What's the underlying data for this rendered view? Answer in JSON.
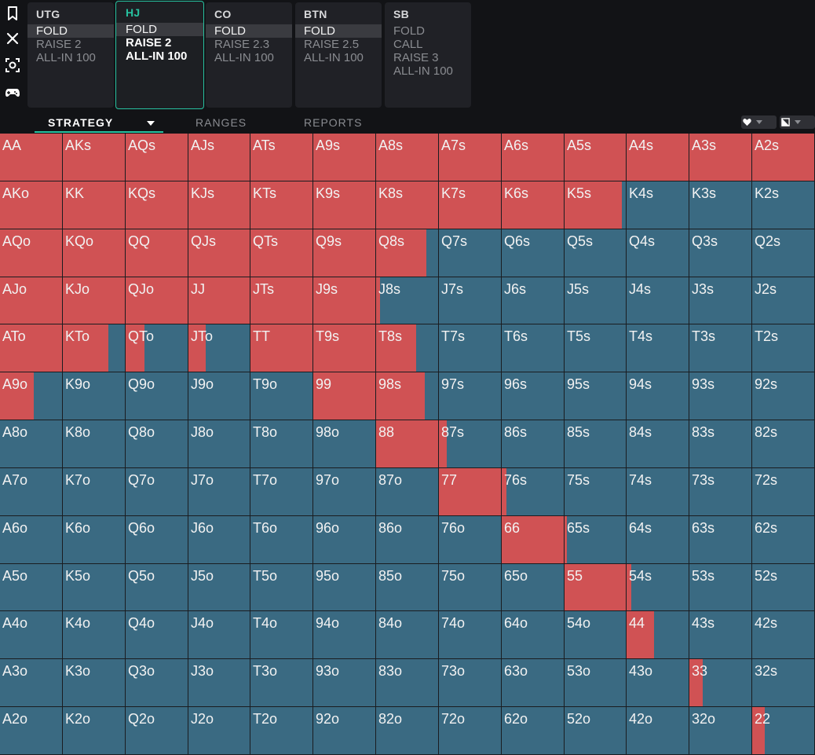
{
  "colors": {
    "raise": "#d05254",
    "fold": "#3a6a82",
    "accent": "#27c2a0"
  },
  "sidebar": {
    "icons": [
      "bookmark-icon",
      "close-icon",
      "screenshot-icon",
      "gamepad-icon"
    ]
  },
  "positions": [
    {
      "name": "UTG",
      "active": false,
      "actions": [
        {
          "label": "FOLD",
          "selected": true
        },
        {
          "label": "RAISE 2",
          "selected": false
        },
        {
          "label": "ALL-IN 100",
          "selected": false
        }
      ]
    },
    {
      "name": "HJ",
      "active": true,
      "actions": [
        {
          "label": "FOLD",
          "selected": true
        },
        {
          "label": "RAISE 2",
          "selected": false,
          "highlight": true
        },
        {
          "label": "ALL-IN 100",
          "selected": false,
          "highlight": true
        }
      ]
    },
    {
      "name": "CO",
      "active": false,
      "actions": [
        {
          "label": "FOLD",
          "selected": true
        },
        {
          "label": "RAISE 2.3",
          "selected": false
        },
        {
          "label": "ALL-IN 100",
          "selected": false
        }
      ]
    },
    {
      "name": "BTN",
      "active": false,
      "actions": [
        {
          "label": "FOLD",
          "selected": true
        },
        {
          "label": "RAISE 2.5",
          "selected": false
        },
        {
          "label": "ALL-IN 100",
          "selected": false
        }
      ]
    },
    {
      "name": "SB",
      "active": false,
      "actions": [
        {
          "label": "FOLD",
          "selected": false
        },
        {
          "label": "CALL",
          "selected": false
        },
        {
          "label": "RAISE 3",
          "selected": false
        },
        {
          "label": "ALL-IN 100",
          "selected": false
        }
      ]
    }
  ],
  "tabs": {
    "strategy": "STRATEGY",
    "ranges": "RANGES",
    "reports": "REPORTS"
  },
  "controls": [
    "heart-icon",
    "half-square-icon"
  ],
  "grid": {
    "rows": [
      [
        "AA",
        "AKs",
        "AQs",
        "AJs",
        "ATs",
        "A9s",
        "A8s",
        "A7s",
        "A6s",
        "A5s",
        "A4s",
        "A3s",
        "A2s"
      ],
      [
        "AKo",
        "KK",
        "KQs",
        "KJs",
        "KTs",
        "K9s",
        "K8s",
        "K7s",
        "K6s",
        "K5s",
        "K4s",
        "K3s",
        "K2s"
      ],
      [
        "AQo",
        "KQo",
        "QQ",
        "QJs",
        "QTs",
        "Q9s",
        "Q8s",
        "Q7s",
        "Q6s",
        "Q5s",
        "Q4s",
        "Q3s",
        "Q2s"
      ],
      [
        "AJo",
        "KJo",
        "QJo",
        "JJ",
        "JTs",
        "J9s",
        "J8s",
        "J7s",
        "J6s",
        "J5s",
        "J4s",
        "J3s",
        "J2s"
      ],
      [
        "ATo",
        "KTo",
        "QTo",
        "JTo",
        "TT",
        "T9s",
        "T8s",
        "T7s",
        "T6s",
        "T5s",
        "T4s",
        "T3s",
        "T2s"
      ],
      [
        "A9o",
        "K9o",
        "Q9o",
        "J9o",
        "T9o",
        "99",
        "98s",
        "97s",
        "96s",
        "95s",
        "94s",
        "93s",
        "92s"
      ],
      [
        "A8o",
        "K8o",
        "Q8o",
        "J8o",
        "T8o",
        "98o",
        "88",
        "87s",
        "86s",
        "85s",
        "84s",
        "83s",
        "82s"
      ],
      [
        "A7o",
        "K7o",
        "Q7o",
        "J7o",
        "T7o",
        "97o",
        "87o",
        "77",
        "76s",
        "75s",
        "74s",
        "73s",
        "72s"
      ],
      [
        "A6o",
        "K6o",
        "Q6o",
        "J6o",
        "T6o",
        "96o",
        "86o",
        "76o",
        "66",
        "65s",
        "64s",
        "63s",
        "62s"
      ],
      [
        "A5o",
        "K5o",
        "Q5o",
        "J5o",
        "T5o",
        "95o",
        "85o",
        "75o",
        "65o",
        "55",
        "54s",
        "53s",
        "52s"
      ],
      [
        "A4o",
        "K4o",
        "Q4o",
        "J4o",
        "T4o",
        "94o",
        "84o",
        "74o",
        "64o",
        "54o",
        "44",
        "43s",
        "42s"
      ],
      [
        "A3o",
        "K3o",
        "Q3o",
        "J3o",
        "T3o",
        "93o",
        "83o",
        "73o",
        "63o",
        "53o",
        "43o",
        "33",
        "32s"
      ],
      [
        "A2o",
        "K2o",
        "Q2o",
        "J2o",
        "T2o",
        "92o",
        "82o",
        "72o",
        "62o",
        "52o",
        "42o",
        "32o",
        "22"
      ]
    ],
    "raise_freq": [
      [
        1,
        1,
        1,
        1,
        1,
        1,
        1,
        1,
        1,
        1,
        1,
        1,
        1
      ],
      [
        1,
        1,
        1,
        1,
        1,
        1,
        1,
        1,
        1,
        0.93,
        0,
        0,
        0
      ],
      [
        1,
        1,
        1,
        1,
        1,
        1,
        0.81,
        0,
        0,
        0,
        0,
        0,
        0
      ],
      [
        1,
        1,
        1,
        1,
        1,
        1,
        0.06,
        0,
        0,
        0,
        0,
        0,
        0
      ],
      [
        1,
        0.74,
        0.3,
        0.28,
        1,
        1,
        0.64,
        0,
        0,
        0,
        0,
        0,
        0
      ],
      [
        0.55,
        0,
        0,
        0,
        0,
        1,
        0.78,
        0,
        0,
        0,
        0,
        0,
        0
      ],
      [
        0,
        0,
        0,
        0,
        0,
        0,
        1,
        0.13,
        0,
        0,
        0,
        0,
        0
      ],
      [
        0,
        0,
        0,
        0,
        0,
        0,
        0,
        1,
        0.08,
        0,
        0,
        0,
        0
      ],
      [
        0,
        0,
        0,
        0,
        0,
        0,
        0,
        0,
        1,
        0.04,
        0,
        0,
        0
      ],
      [
        0,
        0,
        0,
        0,
        0,
        0,
        0,
        0,
        0,
        1,
        0.08,
        0,
        0
      ],
      [
        0,
        0,
        0,
        0,
        0,
        0,
        0,
        0,
        0,
        0,
        0.44,
        0,
        0
      ],
      [
        0,
        0,
        0,
        0,
        0,
        0,
        0,
        0,
        0,
        0,
        0,
        0.21,
        0
      ],
      [
        0,
        0,
        0,
        0,
        0,
        0,
        0,
        0,
        0,
        0,
        0,
        0,
        0.2
      ]
    ]
  }
}
